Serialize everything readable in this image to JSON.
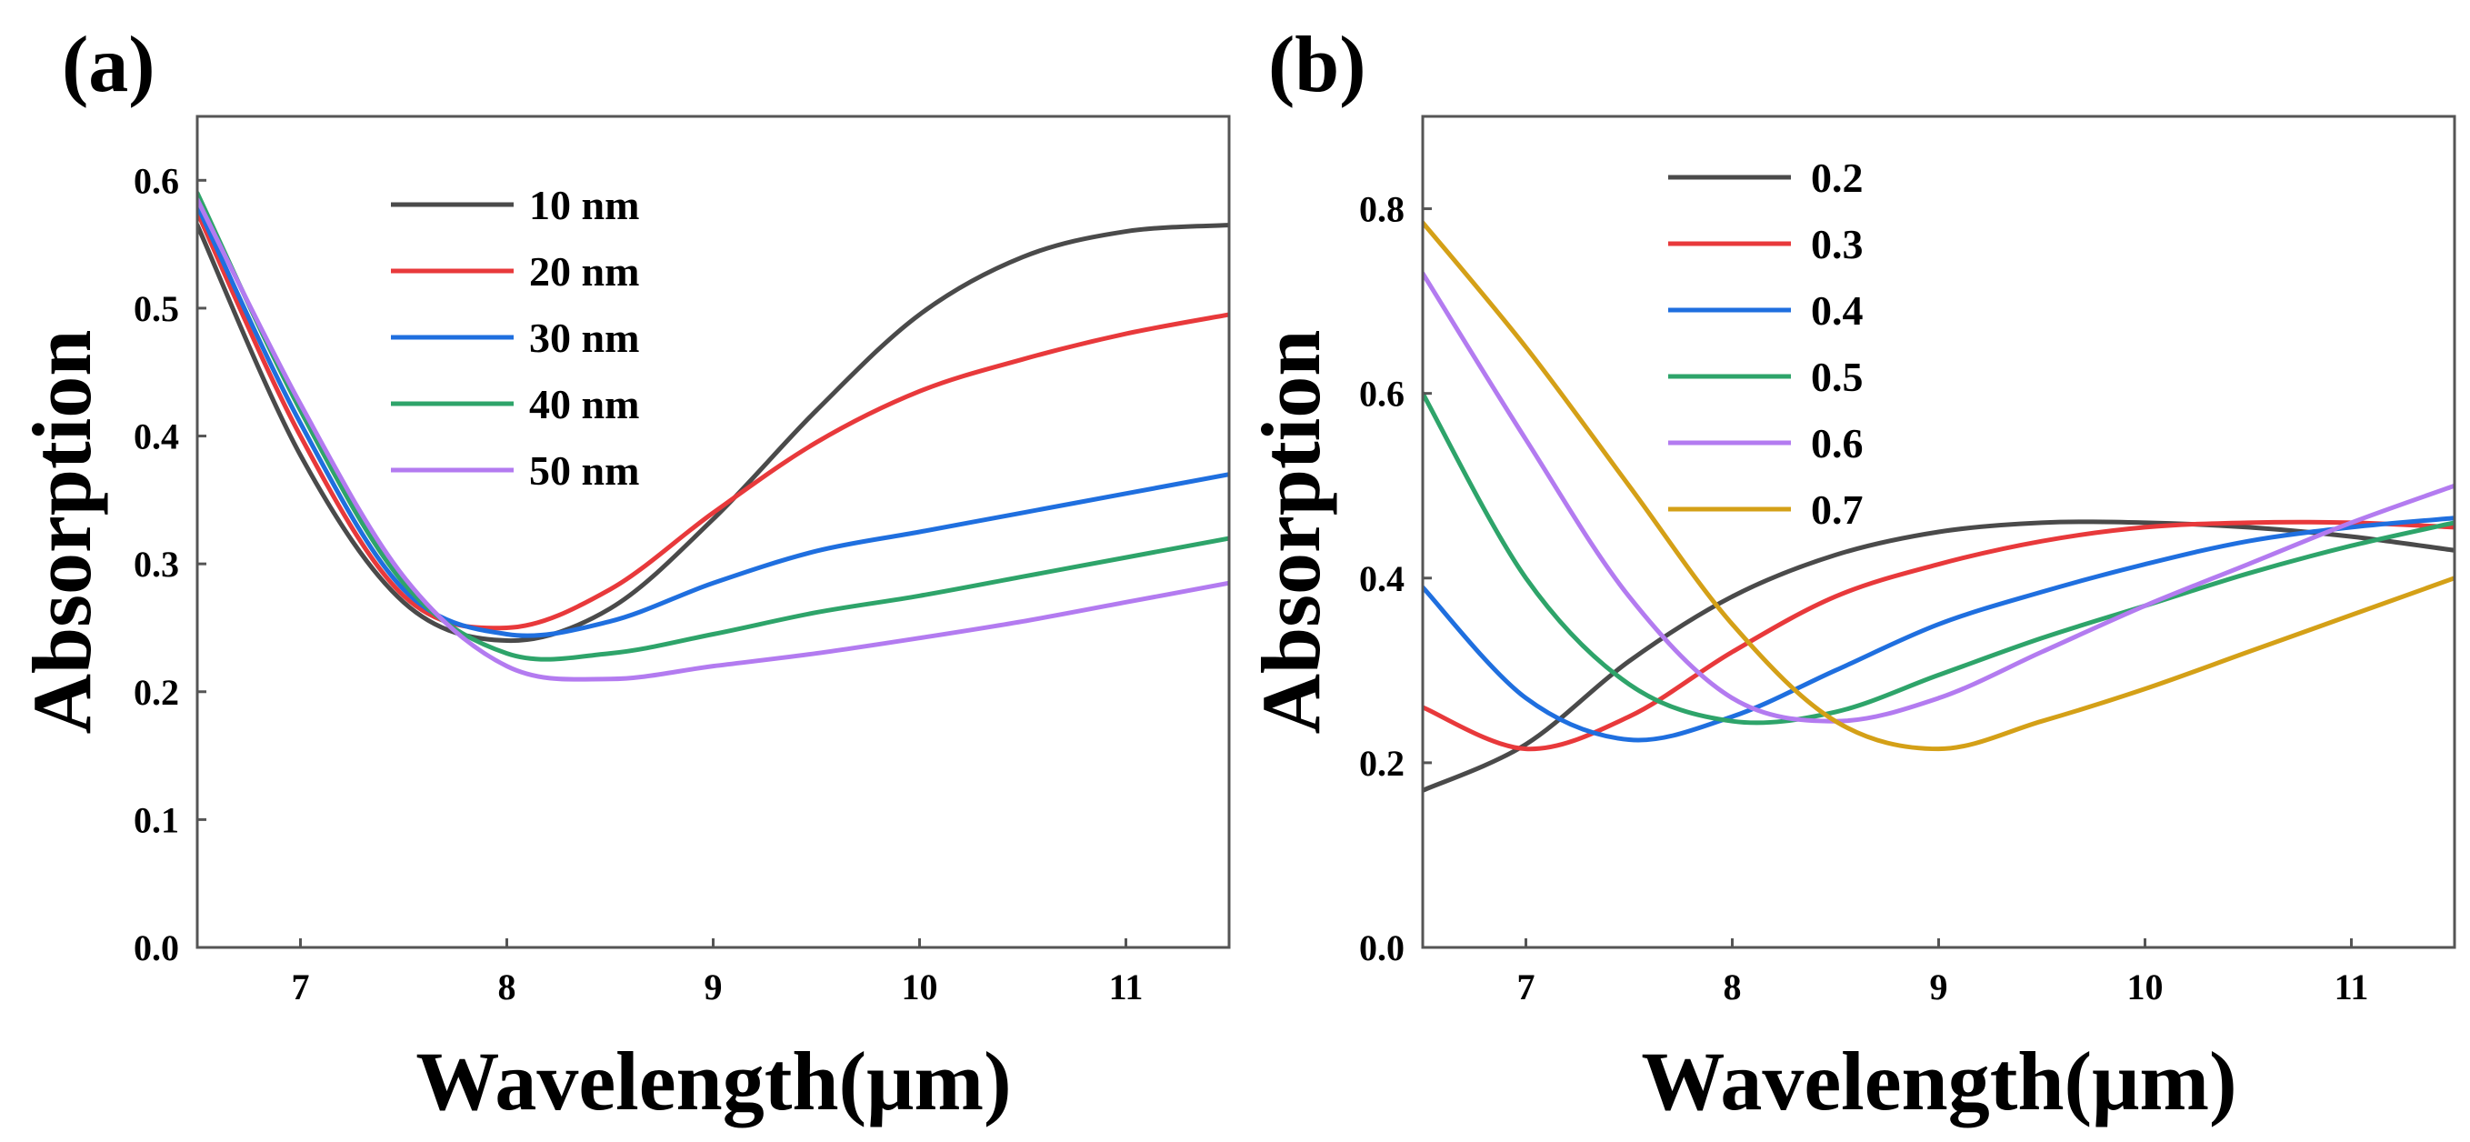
{
  "chart_data": [
    {
      "type": "line",
      "panel_label": "(a)",
      "xlabel": "Wavelength(μm)",
      "ylabel": "Absorption",
      "xlim": [
        6.5,
        11.5
      ],
      "ylim": [
        0.0,
        0.65
      ],
      "xticks": [
        7,
        8,
        9,
        10,
        11
      ],
      "xtick_labels": [
        "7",
        "8",
        "9",
        "10",
        "11"
      ],
      "yticks": [
        0.0,
        0.1,
        0.2,
        0.3,
        0.4,
        0.5,
        0.6
      ],
      "ytick_labels": [
        "0.0",
        "0.1",
        "0.2",
        "0.3",
        "0.4",
        "0.5",
        "0.6"
      ],
      "legend_position": "top-left",
      "x": [
        6.5,
        7.0,
        7.5,
        8.0,
        8.5,
        9.0,
        9.5,
        10.0,
        10.5,
        11.0,
        11.5
      ],
      "series": [
        {
          "name": "10 nm",
          "color": "#4a4a4a",
          "values": [
            0.565,
            0.385,
            0.27,
            0.24,
            0.265,
            0.335,
            0.42,
            0.495,
            0.54,
            0.56,
            0.565
          ]
        },
        {
          "name": "20 nm",
          "color": "#e8393b",
          "values": [
            0.575,
            0.4,
            0.275,
            0.25,
            0.28,
            0.34,
            0.395,
            0.435,
            0.46,
            0.48,
            0.495
          ]
        },
        {
          "name": "30 nm",
          "color": "#1f6fdf",
          "values": [
            0.58,
            0.41,
            0.28,
            0.245,
            0.255,
            0.285,
            0.31,
            0.325,
            0.34,
            0.355,
            0.37
          ]
        },
        {
          "name": "40 nm",
          "color": "#2ea46a",
          "values": [
            0.59,
            0.42,
            0.285,
            0.23,
            0.23,
            0.245,
            0.262,
            0.275,
            0.29,
            0.305,
            0.32
          ]
        },
        {
          "name": "50 nm",
          "color": "#b37bf0",
          "values": [
            0.585,
            0.425,
            0.29,
            0.22,
            0.21,
            0.22,
            0.23,
            0.242,
            0.255,
            0.27,
            0.285
          ]
        }
      ]
    },
    {
      "type": "line",
      "panel_label": "(b)",
      "xlabel": "Wavelength(μm)",
      "ylabel": "Absorption",
      "xlim": [
        6.5,
        11.5
      ],
      "ylim": [
        0.0,
        0.9
      ],
      "xticks": [
        7,
        8,
        9,
        10,
        11
      ],
      "xtick_labels": [
        "7",
        "8",
        "9",
        "10",
        "11"
      ],
      "yticks": [
        0.0,
        0.2,
        0.4,
        0.6,
        0.8
      ],
      "ytick_labels": [
        "0.0",
        "0.2",
        "0.4",
        "0.6",
        "0.8"
      ],
      "legend_position": "top-left",
      "x": [
        6.5,
        7.0,
        7.5,
        8.0,
        8.5,
        9.0,
        9.5,
        10.0,
        10.5,
        11.0,
        11.5
      ],
      "series": [
        {
          "name": "0.2",
          "color": "#4a4a4a",
          "values": [
            0.17,
            0.22,
            0.31,
            0.38,
            0.425,
            0.45,
            0.46,
            0.46,
            0.455,
            0.445,
            0.43
          ]
        },
        {
          "name": "0.3",
          "color": "#e8393b",
          "values": [
            0.26,
            0.215,
            0.25,
            0.32,
            0.38,
            0.415,
            0.44,
            0.455,
            0.46,
            0.46,
            0.455
          ]
        },
        {
          "name": "0.4",
          "color": "#1f6fdf",
          "values": [
            0.39,
            0.27,
            0.225,
            0.25,
            0.3,
            0.35,
            0.385,
            0.415,
            0.44,
            0.455,
            0.465
          ]
        },
        {
          "name": "0.5",
          "color": "#2ea46a",
          "values": [
            0.6,
            0.4,
            0.285,
            0.245,
            0.255,
            0.295,
            0.335,
            0.37,
            0.405,
            0.435,
            0.46
          ]
        },
        {
          "name": "0.6",
          "color": "#b37bf0",
          "values": [
            0.73,
            0.55,
            0.38,
            0.27,
            0.245,
            0.27,
            0.32,
            0.37,
            0.415,
            0.46,
            0.5
          ]
        },
        {
          "name": "0.7",
          "color": "#d4a017",
          "values": [
            0.785,
            0.65,
            0.5,
            0.35,
            0.245,
            0.215,
            0.245,
            0.28,
            0.32,
            0.36,
            0.4
          ]
        }
      ]
    }
  ]
}
